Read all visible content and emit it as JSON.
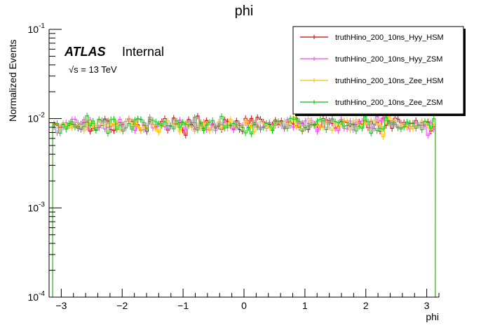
{
  "chart_data": {
    "type": "line",
    "title": "phi",
    "xlabel": "phi",
    "ylabel": "Normalized Events",
    "xlim": [
      -3.2,
      3.2
    ],
    "ylim": [
      0.0001,
      0.1
    ],
    "yscale": "log",
    "x_ticks": [
      "−3",
      "−2",
      "−1",
      "0",
      "1",
      "2",
      "3"
    ],
    "x_tick_values": [
      -3,
      -2,
      -1,
      0,
      1,
      2,
      3
    ],
    "y_ticks": [
      "10^-4",
      "10^-3",
      "10^-2",
      "10^-1"
    ],
    "y_tick_values": [
      0.0001,
      0.001,
      0.01,
      0.1
    ],
    "grid": false,
    "legend_position": "top-right",
    "atlas_label": "ATLAS",
    "atlas_status": "Internal",
    "energy_label": "√s = 13 TeV",
    "series": [
      {
        "name": "truthHino_200_10ns_Hyy_HSM",
        "color": "#cc0000",
        "nominal_value": 0.0087,
        "range": [
          0.0061,
          0.0113
        ]
      },
      {
        "name": "truthHino_200_10ns_Hyy_ZSM",
        "color": "#ee44ee",
        "nominal_value": 0.0086,
        "range": [
          0.0064,
          0.0115
        ]
      },
      {
        "name": "truthHino_200_10ns_Zee_HSM",
        "color": "#ffbb00",
        "nominal_value": 0.0085,
        "range": [
          0.0054,
          0.0111
        ]
      },
      {
        "name": "truthHino_200_10ns_Zee_ZSM",
        "color": "#11bb11",
        "nominal_value": 0.0086,
        "range": [
          0.0063,
          0.0108
        ]
      }
    ]
  }
}
